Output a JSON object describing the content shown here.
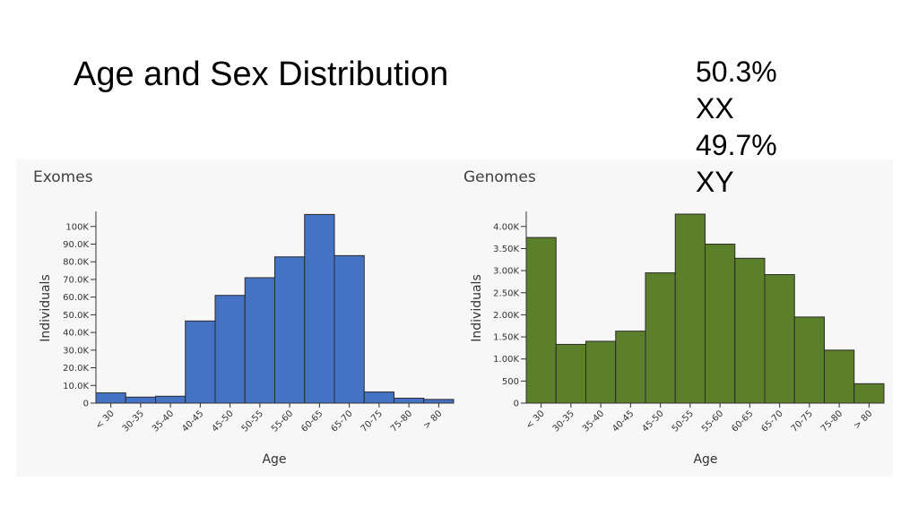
{
  "slide": {
    "title": "Age and Sex Distribution",
    "sex_stats": [
      {
        "percent": "50.3%",
        "label": "XX"
      },
      {
        "percent": "49.7%",
        "label": "XY"
      }
    ]
  },
  "chart_data": [
    {
      "type": "bar",
      "title": "Exomes",
      "xlabel": "Age",
      "ylabel": "Individuals",
      "categories": [
        "< 30",
        "30-35",
        "35-40",
        "40-45",
        "45-50",
        "50-55",
        "55-60",
        "60-65",
        "65-70",
        "70-75",
        "75-80",
        "> 80"
      ],
      "values": [
        5800,
        3400,
        3900,
        46500,
        61000,
        71000,
        82800,
        106800,
        83500,
        6300,
        2800,
        2100
      ],
      "ylim": [
        0,
        107000
      ],
      "yticks": [
        0,
        10000,
        20000,
        30000,
        40000,
        50000,
        60000,
        70000,
        80000,
        90000,
        100000
      ],
      "ytick_labels": [
        "0",
        "10.0K",
        "20.0K",
        "30.0K",
        "40.0K",
        "50.0K",
        "60.0K",
        "70.0K",
        "80.0K",
        "90.0K",
        "100K"
      ],
      "color": "#4472c4",
      "grid": false
    },
    {
      "type": "bar",
      "title": "Genomes",
      "xlabel": "Age",
      "ylabel": "Individuals",
      "categories": [
        "< 30",
        "30-35",
        "35-40",
        "40-45",
        "45-50",
        "50-55",
        "55-60",
        "60-65",
        "65-70",
        "70-75",
        "75-80",
        "> 80"
      ],
      "values": [
        3750,
        1330,
        1400,
        1630,
        2950,
        4280,
        3600,
        3280,
        2910,
        1950,
        1200,
        440
      ],
      "ylim": [
        0,
        4280
      ],
      "yticks": [
        0,
        500,
        1000,
        1500,
        2000,
        2500,
        3000,
        3500,
        4000
      ],
      "ytick_labels": [
        "0",
        "500",
        "1.00K",
        "1.50K",
        "2.00K",
        "2.50K",
        "3.00K",
        "3.50K",
        "4.00K"
      ],
      "color": "#5b7f2b",
      "grid": false
    }
  ]
}
